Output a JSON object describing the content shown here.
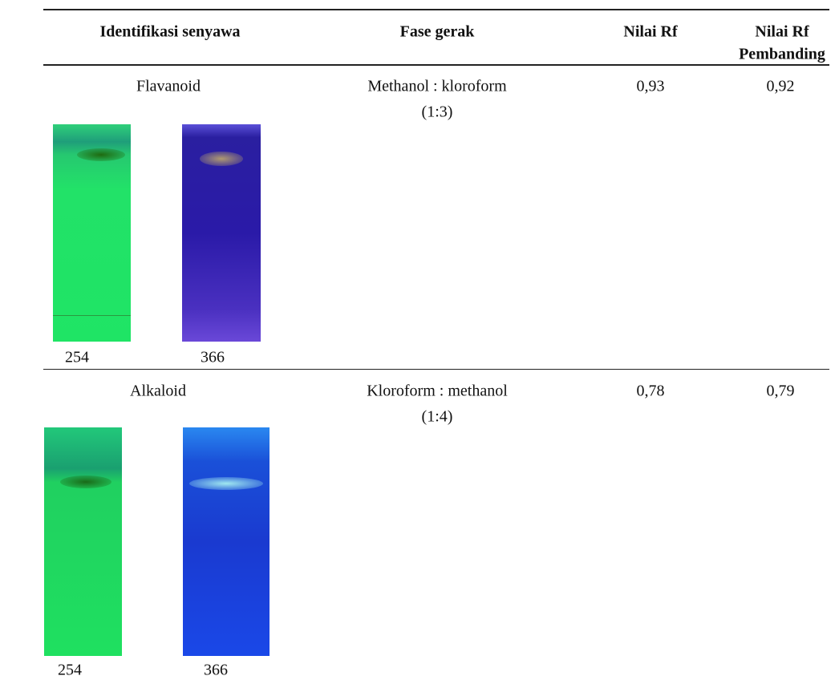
{
  "table": {
    "header": [
      "Identifikasi senyawa",
      "Fase gerak",
      "Nilai Rf",
      [
        "Nilai Rf",
        "Pembanding"
      ]
    ],
    "rows": [
      {
        "compound": "Flavanoid",
        "phase": [
          "Methanol : kloroform",
          "(1:3)"
        ],
        "rf": "0,93",
        "rf_ref": "0,92",
        "plates": [
          "254",
          "366"
        ]
      },
      {
        "compound": "Alkaloid",
        "phase": [
          "Kloroform : methanol",
          "(1:4)"
        ],
        "rf": "0,78",
        "rf_ref": "0,79",
        "plates": [
          "254",
          "366"
        ]
      }
    ]
  }
}
